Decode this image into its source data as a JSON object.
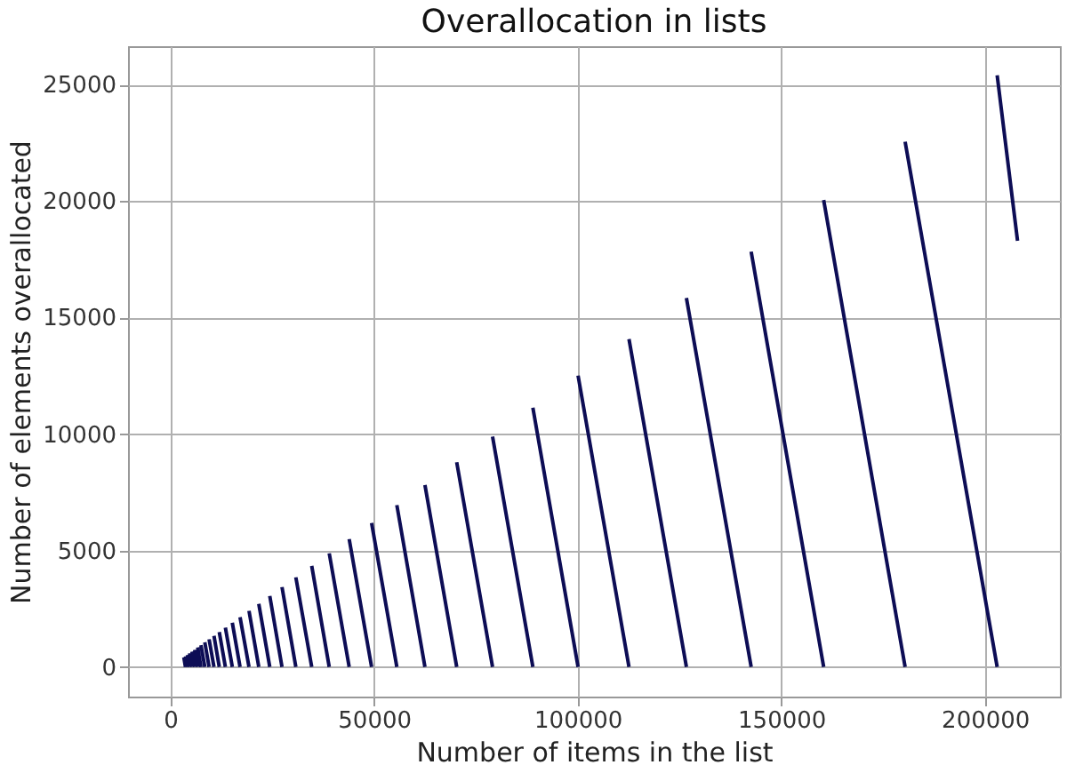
{
  "chart_data": {
    "type": "line",
    "title": "Overallocation in lists",
    "xlabel": "Number of items in the list",
    "ylabel": "Number of elements overallocated",
    "xlim": [
      -10400,
      218400
    ],
    "ylim": [
      -1270,
      26650
    ],
    "xticks": [
      0,
      50000,
      100000,
      150000,
      200000
    ],
    "yticks": [
      0,
      5000,
      10000,
      15000,
      20000,
      25000
    ],
    "grid": true,
    "line_style": "solid",
    "marker": "none",
    "series": [
      {
        "color": "#0d0d55",
        "x": [
          3300,
          3700,
          null,
          3700,
          4180,
          null,
          4180,
          4700,
          null,
          4700,
          5300,
          null,
          5300,
          5950,
          null,
          5950,
          6700,
          null,
          6700,
          7500,
          null,
          7500,
          8450,
          null,
          8450,
          9500,
          null,
          9500,
          10700,
          null,
          10700,
          12000,
          null,
          12000,
          13500,
          null,
          13500,
          15200,
          null,
          15200,
          17100,
          null,
          17100,
          19300,
          null,
          19300,
          21700,
          null,
          21700,
          24400,
          null,
          24400,
          27400,
          null,
          27400,
          30800,
          null,
          30800,
          34700,
          null,
          34700,
          39000,
          null,
          39000,
          43900,
          null,
          43900,
          49400,
          null,
          49400,
          55600,
          null,
          55600,
          62500,
          null,
          62500,
          70300,
          null,
          70300,
          79100,
          null,
          79100,
          89000,
          null,
          89000,
          100100,
          null,
          100100,
          112600,
          null,
          112600,
          126700,
          null,
          126700,
          142600,
          null,
          142600,
          160400,
          null,
          160400,
          180400,
          null,
          180400,
          203000,
          null,
          203000,
          208000
        ],
        "values": [
          410,
          0,
          null,
          460,
          0,
          null,
          520,
          0,
          null,
          590,
          0,
          null,
          660,
          0,
          null,
          740,
          0,
          null,
          840,
          0,
          null,
          940,
          0,
          null,
          1060,
          0,
          null,
          1190,
          0,
          null,
          1340,
          0,
          null,
          1500,
          0,
          null,
          1690,
          0,
          null,
          1900,
          0,
          null,
          2140,
          0,
          null,
          2410,
          0,
          null,
          2710,
          0,
          null,
          3050,
          0,
          null,
          3430,
          0,
          null,
          3850,
          0,
          null,
          4340,
          0,
          null,
          4880,
          0,
          null,
          5490,
          0,
          null,
          6180,
          0,
          null,
          6950,
          0,
          null,
          7810,
          0,
          null,
          8790,
          0,
          null,
          9890,
          0,
          null,
          11130,
          0,
          null,
          12510,
          0,
          null,
          14080,
          0,
          null,
          15840,
          0,
          null,
          17830,
          0,
          null,
          20050,
          0,
          null,
          22550,
          0,
          null,
          25400,
          18300
        ]
      }
    ]
  }
}
